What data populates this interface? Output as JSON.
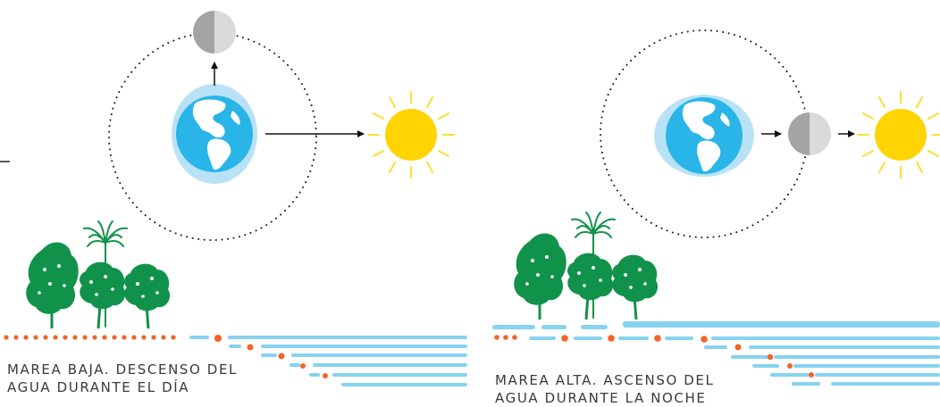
{
  "panels": [
    {
      "id": "low-tide",
      "caption_line1": "MAREA BAJA. DESCENSO DEL",
      "caption_line2": "AGUA DURANTE EL DÍA"
    },
    {
      "id": "high-tide",
      "caption_line1": "MAREA ALTA. ASCENSO DEL",
      "caption_line2": "AGUA DURANTE LA NOCHE"
    }
  ],
  "colors": {
    "earth_ocean": "#29b5e8",
    "earth_land": "#ffffff",
    "water_bulge": "#b9e2f6",
    "water": "#86d2ef",
    "moon_dark": "#a4a4a6",
    "moon_light": "#dadadb",
    "sun": "#ffd400",
    "sun_rays": "#ffdd33",
    "tree": "#11924a",
    "sediment": "#f26427",
    "orbit": "#222222"
  },
  "icons": [
    "earth-icon",
    "moon-icon",
    "sun-icon",
    "tree-icon",
    "palm-icon"
  ]
}
